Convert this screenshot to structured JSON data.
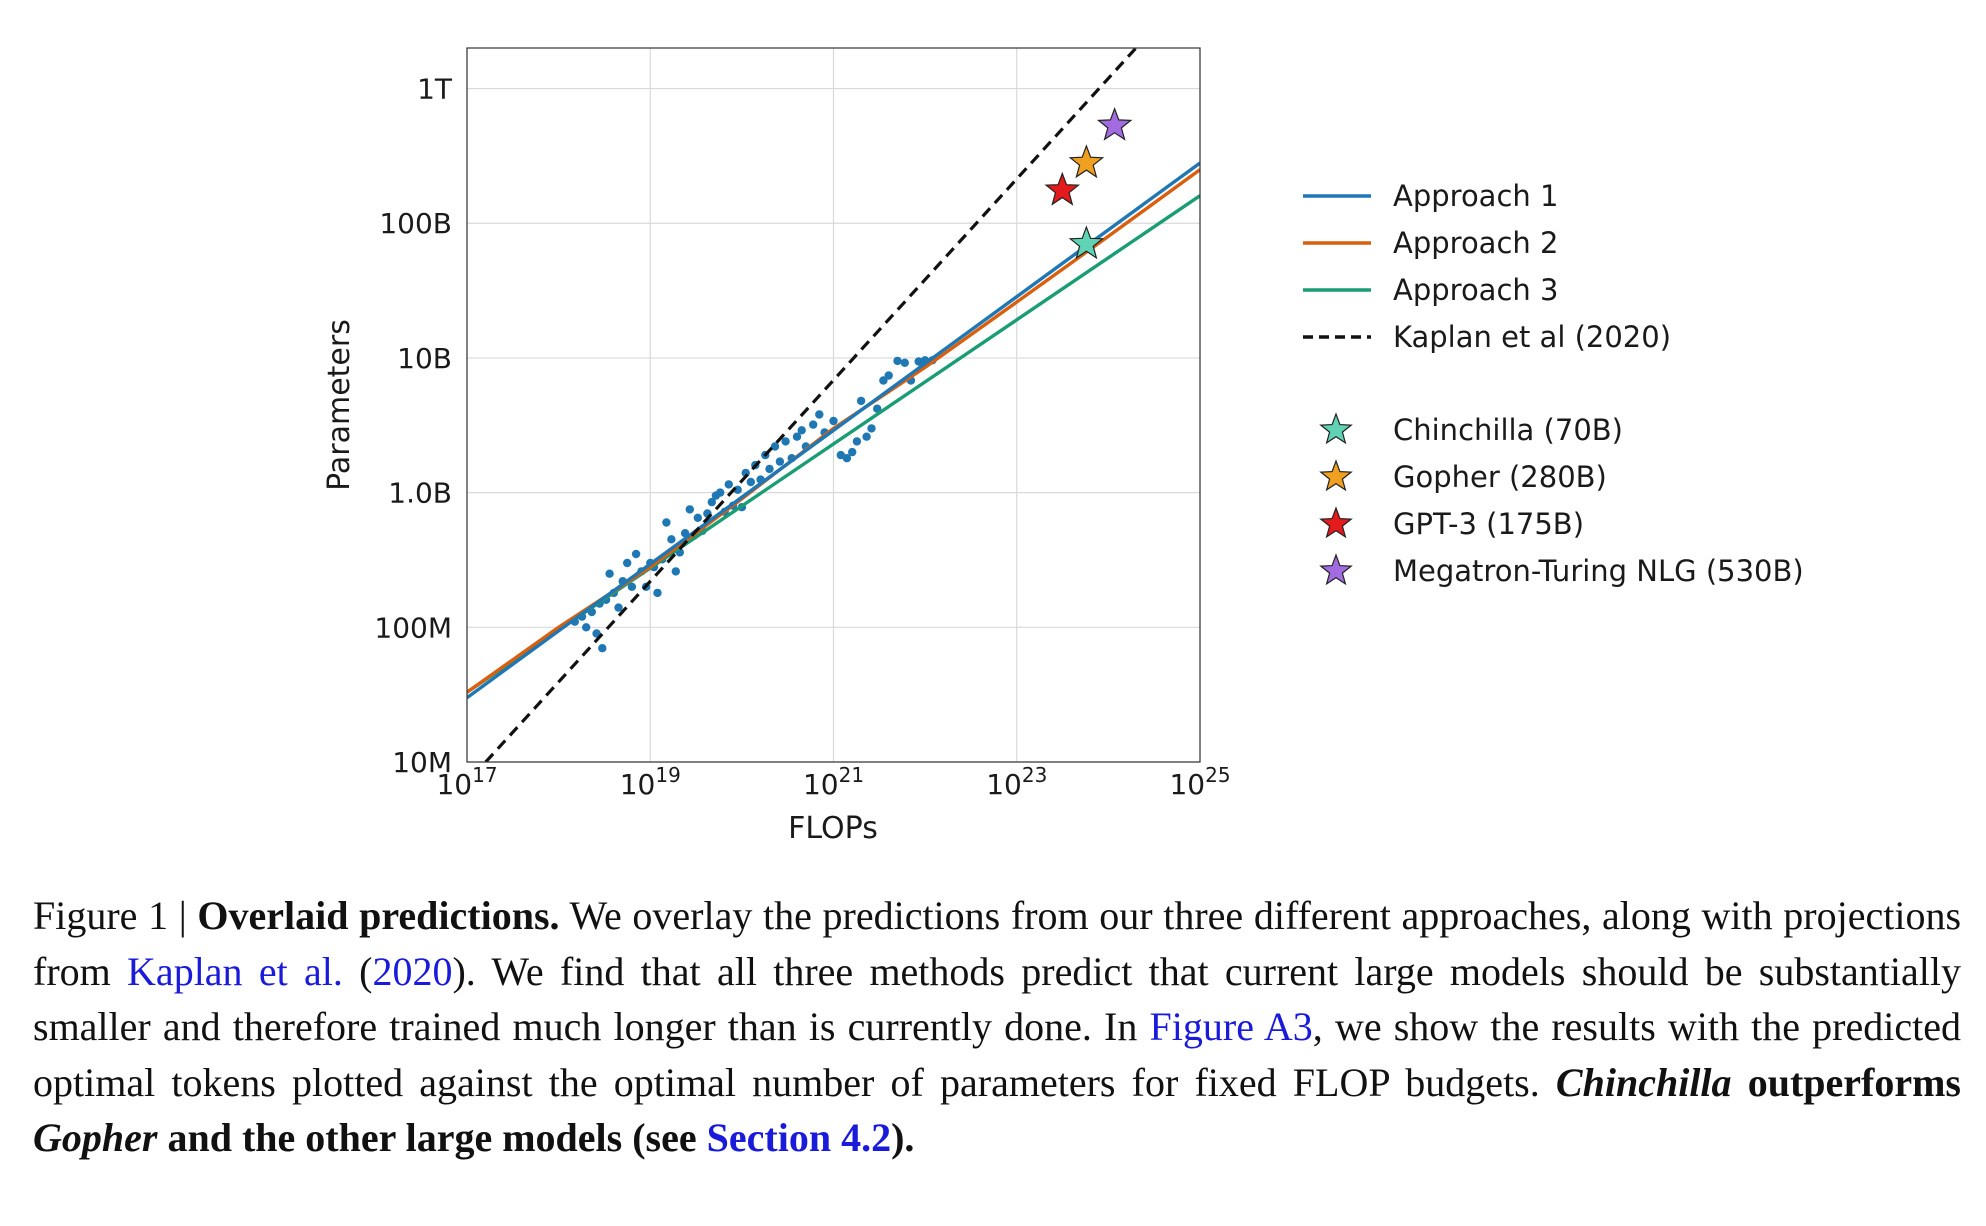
{
  "chart_data": {
    "type": "scatter",
    "xlabel": "FLOPs",
    "ylabel": "Parameters",
    "x_scale": "log",
    "y_scale": "log",
    "xlim": [
      1e+17,
      1e+25
    ],
    "ylim": [
      10000000.0,
      2000000000000.0
    ],
    "grid": true,
    "legend_position": "right",
    "x_ticks": [
      {
        "value": 1e+17,
        "base": "10",
        "exp": "17"
      },
      {
        "value": 1e+19,
        "base": "10",
        "exp": "19"
      },
      {
        "value": 1e+21,
        "base": "10",
        "exp": "21"
      },
      {
        "value": 1e+23,
        "base": "10",
        "exp": "23"
      },
      {
        "value": 1e+25,
        "base": "10",
        "exp": "25"
      }
    ],
    "y_ticks": [
      {
        "value": 10000000.0,
        "label": "10M"
      },
      {
        "value": 100000000.0,
        "label": "100M"
      },
      {
        "value": 1000000000.0,
        "label": "1.0B"
      },
      {
        "value": 10000000000.0,
        "label": "10B"
      },
      {
        "value": 100000000000.0,
        "label": "100B"
      },
      {
        "value": 1000000000000.0,
        "label": "1T"
      }
    ],
    "lines": [
      {
        "name": "Approach 1",
        "color": "#1f77b4",
        "dash": "solid",
        "x": [
          1e+17,
          1e+25
        ],
        "y": [
          30000000.0,
          280000000000.0
        ]
      },
      {
        "name": "Approach 2",
        "color": "#d95f0e",
        "dash": "solid",
        "x": [
          1e+17,
          1e+18,
          1e+19,
          1e+20,
          1e+21,
          1e+22,
          1e+23,
          1e+24,
          1e+25
        ],
        "y": [
          33000000.0,
          100000000.0,
          280000000.0,
          900000000.0,
          3000000000.0,
          8500000000.0,
          26000000000.0,
          80000000000.0,
          250000000000.0
        ]
      },
      {
        "name": "Approach 3",
        "color": "#1a9c75",
        "dash": "solid",
        "x": [
          1e+17,
          1e+25
        ],
        "y": [
          33000000.0,
          160000000000.0
        ]
      },
      {
        "name": "Kaplan et al (2020)",
        "color": "#111111",
        "dash": "dashed",
        "x": [
          1.6e+17,
          2e+24
        ],
        "y": [
          10000000.0,
          2000000000000.0
        ]
      }
    ],
    "scatter": {
      "color": "#1f77b4",
      "points": [
        [
          1.5e+18,
          110000000.0
        ],
        [
          1.8e+18,
          120000000.0
        ],
        [
          2e+18,
          100000000.0
        ],
        [
          2.3e+18,
          130000000.0
        ],
        [
          2.6e+18,
          90000000.0
        ],
        [
          2.8e+18,
          150000000.0
        ],
        [
          3e+18,
          70000000.0
        ],
        [
          3.3e+18,
          160000000.0
        ],
        [
          3.6e+18,
          250000000.0
        ],
        [
          4e+18,
          180000000.0
        ],
        [
          4.5e+18,
          140000000.0
        ],
        [
          5e+18,
          220000000.0
        ],
        [
          5.6e+18,
          300000000.0
        ],
        [
          6.3e+18,
          200000000.0
        ],
        [
          7e+18,
          350000000.0
        ],
        [
          8e+18,
          260000000.0
        ],
        [
          9e+18,
          200000000.0
        ],
        [
          1e+19,
          300000000.0
        ],
        [
          1.1e+19,
          280000000.0
        ],
        [
          1.2e+19,
          180000000.0
        ],
        [
          1.35e+19,
          320000000.0
        ],
        [
          1.5e+19,
          600000000.0
        ],
        [
          1.7e+19,
          450000000.0
        ],
        [
          1.9e+19,
          260000000.0
        ],
        [
          2.1e+19,
          360000000.0
        ],
        [
          2.4e+19,
          500000000.0
        ],
        [
          2.7e+19,
          750000000.0
        ],
        [
          3e+19,
          480000000.0
        ],
        [
          3.3e+19,
          650000000.0
        ],
        [
          3.7e+19,
          520000000.0
        ],
        [
          4.2e+19,
          700000000.0
        ],
        [
          4.7e+19,
          850000000.0
        ],
        [
          5.2e+19,
          950000000.0
        ],
        [
          5.8e+19,
          1000000000.0
        ],
        [
          6.5e+19,
          720000000.0
        ],
        [
          7.2e+19,
          1150000000.0
        ],
        [
          8e+19,
          800000000.0
        ],
        [
          9e+19,
          1050000000.0
        ],
        [
          1e+20,
          780000000.0
        ],
        [
          1.1e+20,
          1400000000.0
        ],
        [
          1.25e+20,
          1200000000.0
        ],
        [
          1.4e+20,
          1600000000.0
        ],
        [
          1.6e+20,
          1250000000.0
        ],
        [
          1.8e+20,
          1900000000.0
        ],
        [
          2e+20,
          1500000000.0
        ],
        [
          2.3e+20,
          2200000000.0
        ],
        [
          2.6e+20,
          1700000000.0
        ],
        [
          3e+20,
          2400000000.0
        ],
        [
          3.5e+20,
          1800000000.0
        ],
        [
          4e+20,
          2600000000.0
        ],
        [
          4.5e+20,
          2900000000.0
        ],
        [
          5e+20,
          2200000000.0
        ],
        [
          6e+20,
          3200000000.0
        ],
        [
          7e+20,
          3800000000.0
        ],
        [
          8e+20,
          2800000000.0
        ],
        [
          1e+21,
          3400000000.0
        ],
        [
          1.2e+21,
          1900000000.0
        ],
        [
          1.4e+21,
          1800000000.0
        ],
        [
          1.6e+21,
          2000000000.0
        ],
        [
          1.8e+21,
          2400000000.0
        ],
        [
          2e+21,
          4800000000.0
        ],
        [
          2.3e+21,
          2600000000.0
        ],
        [
          2.6e+21,
          3000000000.0
        ],
        [
          3e+21,
          4200000000.0
        ],
        [
          3.5e+21,
          6800000000.0
        ],
        [
          4e+21,
          7400000000.0
        ],
        [
          5e+21,
          9500000000.0
        ],
        [
          6e+21,
          9200000000.0
        ],
        [
          7e+21,
          6800000000.0
        ],
        [
          8.5e+21,
          9400000000.0
        ],
        [
          1e+22,
          9600000000.0
        ],
        [
          1.2e+22,
          9600000000.0
        ]
      ]
    },
    "stars": [
      {
        "name": "Chinchilla (70B)",
        "color": "#5fd3b4",
        "x": 5.76e+23,
        "y": 70000000000.0
      },
      {
        "name": "Gopher (280B)",
        "color": "#f0a020",
        "x": 5.76e+23,
        "y": 280000000000.0
      },
      {
        "name": "GPT-3 (175B)",
        "color": "#e41a1c",
        "x": 3.14e+23,
        "y": 175000000000.0
      },
      {
        "name": "Megatron-Turing NLG (530B)",
        "color": "#a36be0",
        "x": 1.17e+24,
        "y": 530000000000.0
      }
    ],
    "legend_lines": [
      {
        "label": "Approach 1",
        "color": "#1f77b4",
        "dash": "solid"
      },
      {
        "label": "Approach 2",
        "color": "#d95f0e",
        "dash": "solid"
      },
      {
        "label": "Approach 3",
        "color": "#1a9c75",
        "dash": "solid"
      },
      {
        "label": "Kaplan et al (2020)",
        "color": "#111111",
        "dash": "dashed"
      }
    ],
    "legend_stars": [
      {
        "label": "Chinchilla (70B)",
        "color": "#5fd3b4"
      },
      {
        "label": "Gopher (280B)",
        "color": "#f0a020"
      },
      {
        "label": "GPT-3 (175B)",
        "color": "#e41a1c"
      },
      {
        "label": "Megatron-Turing NLG (530B)",
        "color": "#a36be0"
      }
    ]
  },
  "caption": {
    "figure_label": "Figure 1 | ",
    "title": "Overlaid predictions.",
    "text1": " We overlay the predictions from our three different approaches, along with projections from ",
    "link_kaplan": "Kaplan et al.",
    "paren_open": " (",
    "link_year": "2020",
    "text2": "). We find that all three methods predict that current large models should be substantially smaller and therefore trained much longer than is currently done. In ",
    "link_figure": "Figure A3",
    "text3": ", we show the results with the predicted optimal tokens plotted against the optimal number of parameters for fixed FLOP budgets. ",
    "bold_chinchilla": "Chinchilla",
    "bold_mid": " outperforms ",
    "bold_gopher": "Gopher",
    "bold_rest": " and the other large models (see ",
    "link_section": "Section 4.2",
    "bold_end": ")."
  }
}
